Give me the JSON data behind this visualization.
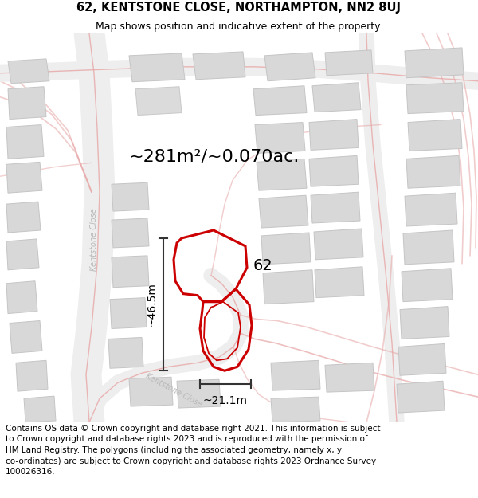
{
  "title_line1": "62, KENTSTONE CLOSE, NORTHAMPTON, NN2 8UJ",
  "title_line2": "Map shows position and indicative extent of the property.",
  "footer_text": "Contains OS data © Crown copyright and database right 2021. This information is subject\nto Crown copyright and database rights 2023 and is reproduced with the permission of\nHM Land Registry. The polygons (including the associated geometry, namely x, y\nco-ordinates) are subject to Crown copyright and database rights 2023 Ordnance Survey\n100026316.",
  "area_label": "~281m²/~0.070ac.",
  "width_label": "~21.1m",
  "height_label": "~46.5m",
  "property_number": "62",
  "map_bg": "#f8f8f8",
  "road_fill": "#eeeeee",
  "road_line": "#e8aaaa",
  "building_color": "#d8d8d8",
  "building_edge": "#c5c5c5",
  "property_edge": "#cc0000",
  "dim_line_color": "#333333",
  "street_label_color": "#b8b8b8",
  "white": "#ffffff",
  "title_fontsize": 10.5,
  "subtitle_fontsize": 9,
  "footer_fontsize": 7.5,
  "area_fontsize": 16,
  "dim_fontsize": 10,
  "num_fontsize": 14,
  "prop_lw": 2.2,
  "road_lw": 1.0
}
